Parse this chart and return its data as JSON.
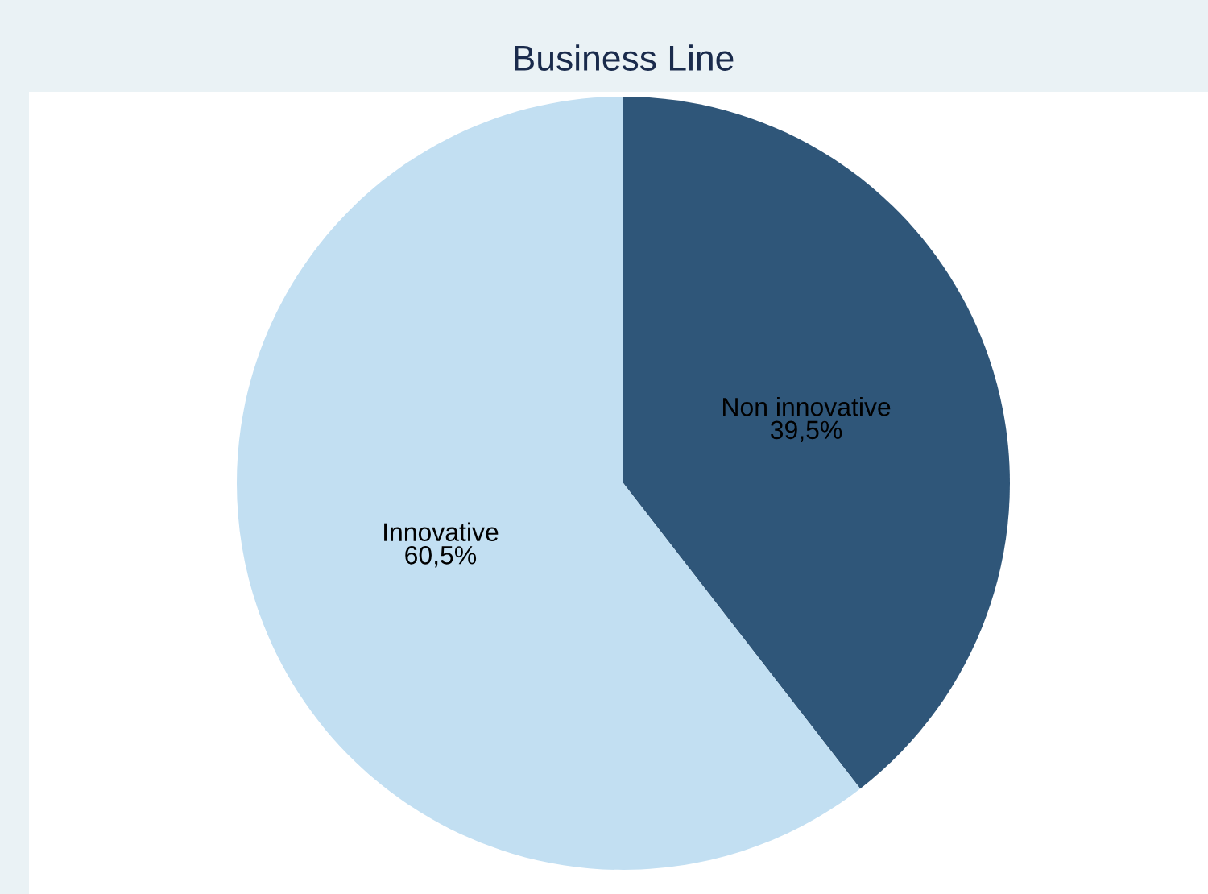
{
  "chart_data": {
    "type": "pie",
    "title": "Business Line",
    "categories": [
      "Non innovative",
      "Innovative"
    ],
    "values": [
      39.5,
      60.5
    ],
    "value_labels": [
      "39,5%",
      "60,5%"
    ],
    "colors": [
      "#2f5679",
      "#c2dff2"
    ],
    "legend": false
  }
}
